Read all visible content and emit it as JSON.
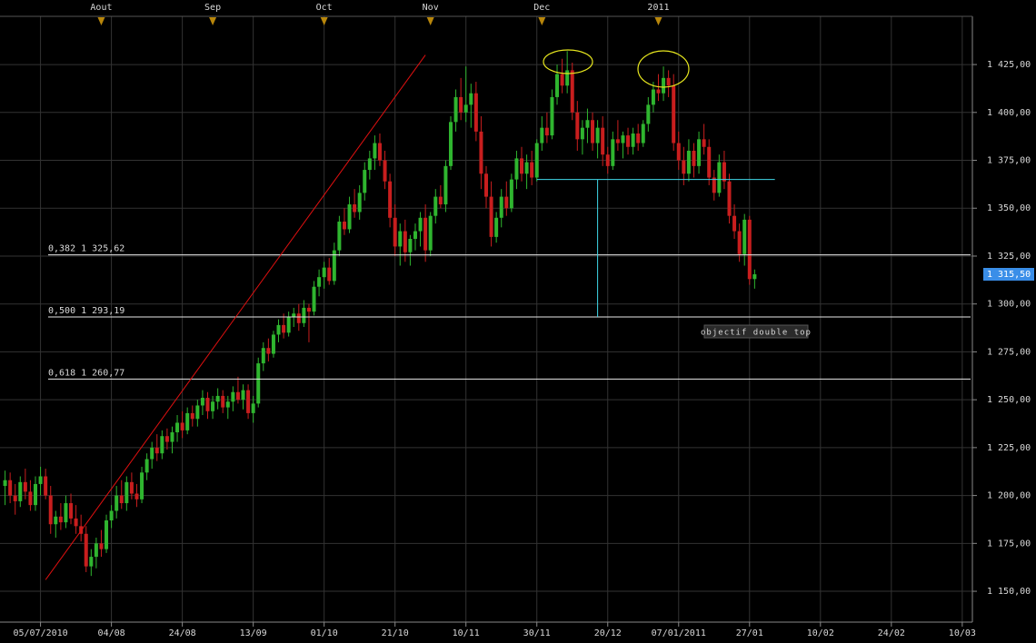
{
  "chart_data": {
    "type": "candlestick",
    "up_color": "#2fb52f",
    "down_color": "#c81e1e",
    "grid": true,
    "xlim": [
      -8,
      184
    ],
    "ylim": [
      1133.9,
      1458.7
    ],
    "yticks": [
      {
        "value": 1150,
        "label": "1 150,00"
      },
      {
        "value": 1175,
        "label": "1 175,00"
      },
      {
        "value": 1200,
        "label": "1 200,00"
      },
      {
        "value": 1225,
        "label": "1 225,00"
      },
      {
        "value": 1250,
        "label": "1 250,00"
      },
      {
        "value": 1275,
        "label": "1 275,00"
      },
      {
        "value": 1300,
        "label": "1 300,00"
      },
      {
        "value": 1325,
        "label": "1 325,00"
      },
      {
        "value": 1350,
        "label": "1 350,00"
      },
      {
        "value": 1375,
        "label": "1 375,00"
      },
      {
        "value": 1400,
        "label": "1 400,00"
      },
      {
        "value": 1425,
        "label": "1 425,00"
      }
    ],
    "xticks": [
      {
        "value": 0,
        "label": "05/07/2010"
      },
      {
        "value": 14,
        "label": "04/08"
      },
      {
        "value": 28,
        "label": "24/08"
      },
      {
        "value": 42,
        "label": "13/09"
      },
      {
        "value": 56,
        "label": "01/10"
      },
      {
        "value": 70,
        "label": "21/10"
      },
      {
        "value": 84,
        "label": "10/11"
      },
      {
        "value": 98,
        "label": "30/11"
      },
      {
        "value": 112,
        "label": "20/12"
      },
      {
        "value": 126,
        "label": "07/01/2011"
      },
      {
        "value": 140,
        "label": "27/01"
      },
      {
        "value": 154,
        "label": "10/02"
      },
      {
        "value": 168,
        "label": "24/02"
      },
      {
        "value": 182,
        "label": "10/03"
      }
    ],
    "month_markers": [
      {
        "value": 12,
        "label": "Aout"
      },
      {
        "value": 34,
        "label": "Sep"
      },
      {
        "value": 56,
        "label": "Oct"
      },
      {
        "value": 77,
        "label": "Nov"
      },
      {
        "value": 99,
        "label": "Dec"
      },
      {
        "value": 122,
        "label": "2011"
      }
    ],
    "levels": [
      {
        "value": 1325.62,
        "label": "0,382 1 325,62"
      },
      {
        "value": 1293.19,
        "label": "0,500 1 293,19"
      },
      {
        "value": 1260.77,
        "label": "0,618 1 260,77"
      }
    ],
    "last_price": {
      "value": 1315.5,
      "label": "1 315,50"
    },
    "annotation": "objectif double top",
    "trendline": {
      "x": [
        1,
        76
      ],
      "y": [
        1156,
        1430
      ]
    },
    "neckline": {
      "x": [
        98,
        145
      ],
      "value": 1365
    },
    "projection": {
      "x": 110,
      "from": 1365,
      "to": 1293.19
    },
    "x": [
      -7,
      -6,
      -5,
      -4,
      -3,
      -2,
      -1,
      0,
      1,
      2,
      3,
      4,
      5,
      6,
      7,
      8,
      9,
      10,
      11,
      12,
      13,
      14,
      15,
      16,
      17,
      18,
      19,
      20,
      21,
      22,
      23,
      24,
      25,
      26,
      27,
      28,
      29,
      30,
      31,
      32,
      33,
      34,
      35,
      36,
      37,
      38,
      39,
      40,
      41,
      42,
      43,
      44,
      45,
      46,
      47,
      48,
      49,
      50,
      51,
      52,
      53,
      54,
      55,
      56,
      57,
      58,
      59,
      60,
      61,
      62,
      63,
      64,
      65,
      66,
      67,
      68,
      69,
      70,
      71,
      72,
      73,
      74,
      75,
      76,
      77,
      78,
      79,
      80,
      81,
      82,
      83,
      84,
      85,
      86,
      87,
      88,
      89,
      90,
      91,
      92,
      93,
      94,
      95,
      96,
      97,
      98,
      99,
      100,
      101,
      102,
      103,
      104,
      105,
      106,
      107,
      108,
      109,
      110,
      111,
      112,
      113,
      114,
      115,
      116,
      117,
      118,
      119,
      120,
      121,
      122,
      123,
      124,
      125,
      126,
      127,
      128,
      129,
      130,
      131,
      132,
      133,
      134,
      135,
      136,
      137,
      138,
      139,
      140,
      141
    ],
    "candles": [
      [
        1205,
        1213,
        1195,
        1208
      ],
      [
        1208,
        1212,
        1196,
        1200
      ],
      [
        1200,
        1206,
        1190,
        1197
      ],
      [
        1197,
        1210,
        1194,
        1207
      ],
      [
        1207,
        1214,
        1198,
        1202
      ],
      [
        1202,
        1208,
        1192,
        1195
      ],
      [
        1195,
        1210,
        1192,
        1206
      ],
      [
        1206,
        1215,
        1200,
        1210
      ],
      [
        1210,
        1214,
        1198,
        1200
      ],
      [
        1200,
        1205,
        1180,
        1185
      ],
      [
        1185,
        1192,
        1178,
        1189
      ],
      [
        1189,
        1196,
        1182,
        1186
      ],
      [
        1186,
        1200,
        1183,
        1196
      ],
      [
        1196,
        1201,
        1185,
        1188
      ],
      [
        1188,
        1195,
        1180,
        1184
      ],
      [
        1184,
        1190,
        1176,
        1180
      ],
      [
        1180,
        1184,
        1160,
        1163
      ],
      [
        1163,
        1172,
        1158,
        1168
      ],
      [
        1168,
        1178,
        1162,
        1175
      ],
      [
        1175,
        1182,
        1168,
        1172
      ],
      [
        1172,
        1190,
        1170,
        1187
      ],
      [
        1187,
        1195,
        1183,
        1192
      ],
      [
        1192,
        1205,
        1188,
        1200
      ],
      [
        1200,
        1208,
        1193,
        1196
      ],
      [
        1196,
        1210,
        1192,
        1207
      ],
      [
        1207,
        1212,
        1198,
        1201
      ],
      [
        1201,
        1206,
        1194,
        1198
      ],
      [
        1198,
        1215,
        1196,
        1212
      ],
      [
        1212,
        1222,
        1208,
        1219
      ],
      [
        1219,
        1228,
        1214,
        1225
      ],
      [
        1225,
        1232,
        1218,
        1222
      ],
      [
        1222,
        1234,
        1219,
        1231
      ],
      [
        1231,
        1235,
        1224,
        1228
      ],
      [
        1228,
        1236,
        1222,
        1233
      ],
      [
        1233,
        1242,
        1228,
        1238
      ],
      [
        1238,
        1244,
        1230,
        1234
      ],
      [
        1234,
        1246,
        1232,
        1243
      ],
      [
        1243,
        1247,
        1236,
        1240
      ],
      [
        1240,
        1250,
        1236,
        1247
      ],
      [
        1247,
        1255,
        1242,
        1251
      ],
      [
        1251,
        1254,
        1240,
        1244
      ],
      [
        1244,
        1252,
        1240,
        1249
      ],
      [
        1249,
        1256,
        1245,
        1252
      ],
      [
        1252,
        1255,
        1243,
        1246
      ],
      [
        1246,
        1252,
        1240,
        1249
      ],
      [
        1249,
        1257,
        1244,
        1254
      ],
      [
        1254,
        1262,
        1248,
        1250
      ],
      [
        1250,
        1258,
        1245,
        1255
      ],
      [
        1255,
        1258,
        1240,
        1243
      ],
      [
        1243,
        1252,
        1238,
        1248
      ],
      [
        1248,
        1272,
        1246,
        1269
      ],
      [
        1269,
        1280,
        1265,
        1277
      ],
      [
        1277,
        1282,
        1270,
        1274
      ],
      [
        1274,
        1286,
        1272,
        1284
      ],
      [
        1284,
        1292,
        1280,
        1289
      ],
      [
        1289,
        1295,
        1282,
        1285
      ],
      [
        1285,
        1296,
        1283,
        1293
      ],
      [
        1293,
        1298,
        1288,
        1295
      ],
      [
        1295,
        1300,
        1286,
        1290
      ],
      [
        1290,
        1302,
        1288,
        1298
      ],
      [
        1298,
        1300,
        1280,
        1296
      ],
      [
        1296,
        1312,
        1294,
        1309
      ],
      [
        1309,
        1318,
        1304,
        1314
      ],
      [
        1314,
        1322,
        1308,
        1319
      ],
      [
        1319,
        1324,
        1310,
        1312
      ],
      [
        1312,
        1332,
        1310,
        1328
      ],
      [
        1328,
        1346,
        1325,
        1343
      ],
      [
        1343,
        1350,
        1336,
        1339
      ],
      [
        1339,
        1356,
        1337,
        1352
      ],
      [
        1352,
        1360,
        1345,
        1348
      ],
      [
        1348,
        1362,
        1344,
        1358
      ],
      [
        1358,
        1374,
        1354,
        1370
      ],
      [
        1370,
        1380,
        1365,
        1376
      ],
      [
        1376,
        1388,
        1370,
        1384
      ],
      [
        1384,
        1389,
        1372,
        1375
      ],
      [
        1375,
        1380,
        1360,
        1364
      ],
      [
        1364,
        1368,
        1340,
        1345
      ],
      [
        1345,
        1352,
        1325,
        1330
      ],
      [
        1330,
        1342,
        1320,
        1338
      ],
      [
        1338,
        1344,
        1322,
        1327
      ],
      [
        1327,
        1336,
        1320,
        1334
      ],
      [
        1334,
        1342,
        1328,
        1338
      ],
      [
        1338,
        1348,
        1330,
        1345
      ],
      [
        1345,
        1352,
        1322,
        1328
      ],
      [
        1328,
        1348,
        1325,
        1346
      ],
      [
        1346,
        1360,
        1342,
        1356
      ],
      [
        1356,
        1362,
        1350,
        1352
      ],
      [
        1352,
        1375,
        1348,
        1372
      ],
      [
        1372,
        1398,
        1370,
        1395
      ],
      [
        1395,
        1412,
        1390,
        1408
      ],
      [
        1408,
        1418,
        1396,
        1400
      ],
      [
        1400,
        1424,
        1395,
        1404
      ],
      [
        1404,
        1415,
        1392,
        1410
      ],
      [
        1410,
        1416,
        1385,
        1390
      ],
      [
        1390,
        1398,
        1360,
        1368
      ],
      [
        1368,
        1372,
        1350,
        1356
      ],
      [
        1356,
        1364,
        1330,
        1335
      ],
      [
        1335,
        1348,
        1332,
        1345
      ],
      [
        1345,
        1360,
        1340,
        1356
      ],
      [
        1356,
        1364,
        1346,
        1350
      ],
      [
        1350,
        1368,
        1348,
        1365
      ],
      [
        1365,
        1380,
        1360,
        1376
      ],
      [
        1376,
        1382,
        1364,
        1368
      ],
      [
        1368,
        1378,
        1360,
        1374
      ],
      [
        1374,
        1380,
        1362,
        1366
      ],
      [
        1366,
        1386,
        1364,
        1384
      ],
      [
        1384,
        1398,
        1380,
        1392
      ],
      [
        1392,
        1400,
        1384,
        1388
      ],
      [
        1388,
        1412,
        1386,
        1408
      ],
      [
        1408,
        1425,
        1404,
        1420
      ],
      [
        1420,
        1428,
        1410,
        1414
      ],
      [
        1414,
        1432,
        1410,
        1422
      ],
      [
        1422,
        1426,
        1396,
        1400
      ],
      [
        1400,
        1406,
        1380,
        1386
      ],
      [
        1386,
        1396,
        1378,
        1392
      ],
      [
        1392,
        1402,
        1384,
        1396
      ],
      [
        1396,
        1400,
        1380,
        1384
      ],
      [
        1384,
        1396,
        1376,
        1392
      ],
      [
        1392,
        1398,
        1372,
        1378
      ],
      [
        1378,
        1382,
        1368,
        1372
      ],
      [
        1372,
        1390,
        1370,
        1386
      ],
      [
        1386,
        1396,
        1380,
        1384
      ],
      [
        1384,
        1390,
        1376,
        1388
      ],
      [
        1388,
        1392,
        1378,
        1382
      ],
      [
        1382,
        1392,
        1378,
        1389
      ],
      [
        1389,
        1394,
        1380,
        1384
      ],
      [
        1384,
        1396,
        1382,
        1394
      ],
      [
        1394,
        1408,
        1390,
        1404
      ],
      [
        1404,
        1416,
        1400,
        1412
      ],
      [
        1412,
        1420,
        1406,
        1410
      ],
      [
        1410,
        1424,
        1406,
        1418
      ],
      [
        1418,
        1422,
        1408,
        1414
      ],
      [
        1414,
        1420,
        1380,
        1384
      ],
      [
        1384,
        1390,
        1370,
        1375
      ],
      [
        1375,
        1382,
        1362,
        1368
      ],
      [
        1368,
        1386,
        1364,
        1380
      ],
      [
        1380,
        1384,
        1366,
        1372
      ],
      [
        1372,
        1390,
        1368,
        1386
      ],
      [
        1386,
        1394,
        1378,
        1382
      ],
      [
        1382,
        1386,
        1362,
        1366
      ],
      [
        1366,
        1370,
        1354,
        1358
      ],
      [
        1358,
        1378,
        1356,
        1374
      ],
      [
        1374,
        1380,
        1360,
        1364
      ],
      [
        1364,
        1368,
        1342,
        1346
      ],
      [
        1346,
        1352,
        1334,
        1338
      ],
      [
        1338,
        1342,
        1322,
        1326
      ],
      [
        1326,
        1347,
        1320,
        1344
      ],
      [
        1344,
        1346,
        1310,
        1313
      ],
      [
        1313,
        1318,
        1308,
        1315.5
      ]
    ]
  }
}
